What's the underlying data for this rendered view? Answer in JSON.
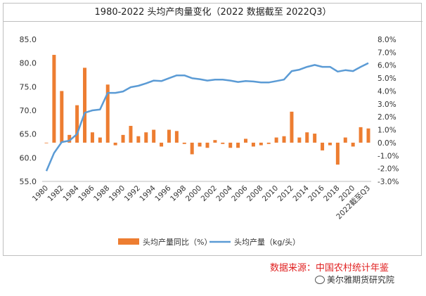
{
  "title": "1980-2022 头均产肉量变化（2022 数据截至 2022Q3）",
  "source": "数据来源：中国农村统计年鉴",
  "watermark": "美尔雅期货研究院",
  "chart_data": {
    "type": "bar+line",
    "categories": [
      "1980",
      "1981",
      "1982",
      "1983",
      "1984",
      "1985",
      "1986",
      "1987",
      "1988",
      "1989",
      "1990",
      "1991",
      "1992",
      "1993",
      "1994",
      "1995",
      "1996",
      "1997",
      "1998",
      "1999",
      "2000",
      "2001",
      "2002",
      "2003",
      "2004",
      "2005",
      "2006",
      "2007",
      "2008",
      "2009",
      "2010",
      "2011",
      "2012",
      "2013",
      "2014",
      "2015",
      "2016",
      "2017",
      "2018",
      "2019",
      "2020",
      "2021",
      "2022截至Q3"
    ],
    "x_tick_labels": [
      "1980",
      "1982",
      "1984",
      "1986",
      "1988",
      "1990",
      "1992",
      "1994",
      "1996",
      "1998",
      "2000",
      "2002",
      "2004",
      "2006",
      "2008",
      "2010",
      "2012",
      "2014",
      "2016",
      "2018",
      "2020",
      "2022截至Q3"
    ],
    "series": [
      {
        "name": "头均产量同比（%）",
        "type": "bar",
        "axis": "right",
        "color": "#ed7d31",
        "values": [
          0.0,
          6.8,
          4.0,
          0.6,
          2.9,
          5.8,
          0.8,
          0.4,
          4.5,
          -0.2,
          0.6,
          1.3,
          0.5,
          0.8,
          1.0,
          -0.3,
          1.0,
          0.9,
          -0.1,
          -0.9,
          -0.3,
          -0.4,
          0.2,
          -0.1,
          -0.4,
          -0.4,
          0.3,
          -0.3,
          -0.2,
          -0.1,
          0.4,
          0.5,
          2.4,
          0.4,
          0.8,
          0.7,
          -0.6,
          -0.2,
          -1.7,
          0.4,
          -0.3,
          1.2,
          1.1
        ]
      },
      {
        "name": "头均产量（kg/头）",
        "type": "line",
        "axis": "left",
        "color": "#5b9bd5",
        "values": [
          57.2,
          61.0,
          63.3,
          63.6,
          65.0,
          69.5,
          70.0,
          70.2,
          73.7,
          73.7,
          74.0,
          74.9,
          75.2,
          75.7,
          76.3,
          76.2,
          76.8,
          77.4,
          77.4,
          76.8,
          76.6,
          76.3,
          76.5,
          76.5,
          76.3,
          76.0,
          76.2,
          76.1,
          75.9,
          75.9,
          76.2,
          76.5,
          78.3,
          78.6,
          79.2,
          79.6,
          79.2,
          79.2,
          78.2,
          78.5,
          78.3,
          79.2,
          80.0
        ]
      }
    ],
    "y_left": {
      "ticks": [
        "55.0",
        "60.0",
        "65.0",
        "70.0",
        "75.0",
        "80.0",
        "85.0"
      ],
      "ylim": [
        55,
        85
      ]
    },
    "y_right": {
      "ticks": [
        "-3.0%",
        "-2.0%",
        "-1.0%",
        "0.0%",
        "1.0%",
        "2.0%",
        "3.0%",
        "4.0%",
        "5.0%",
        "6.0%",
        "7.0%",
        "8.0%"
      ],
      "ylim": [
        -3,
        8
      ]
    },
    "legend_position": "bottom",
    "grid": false
  }
}
